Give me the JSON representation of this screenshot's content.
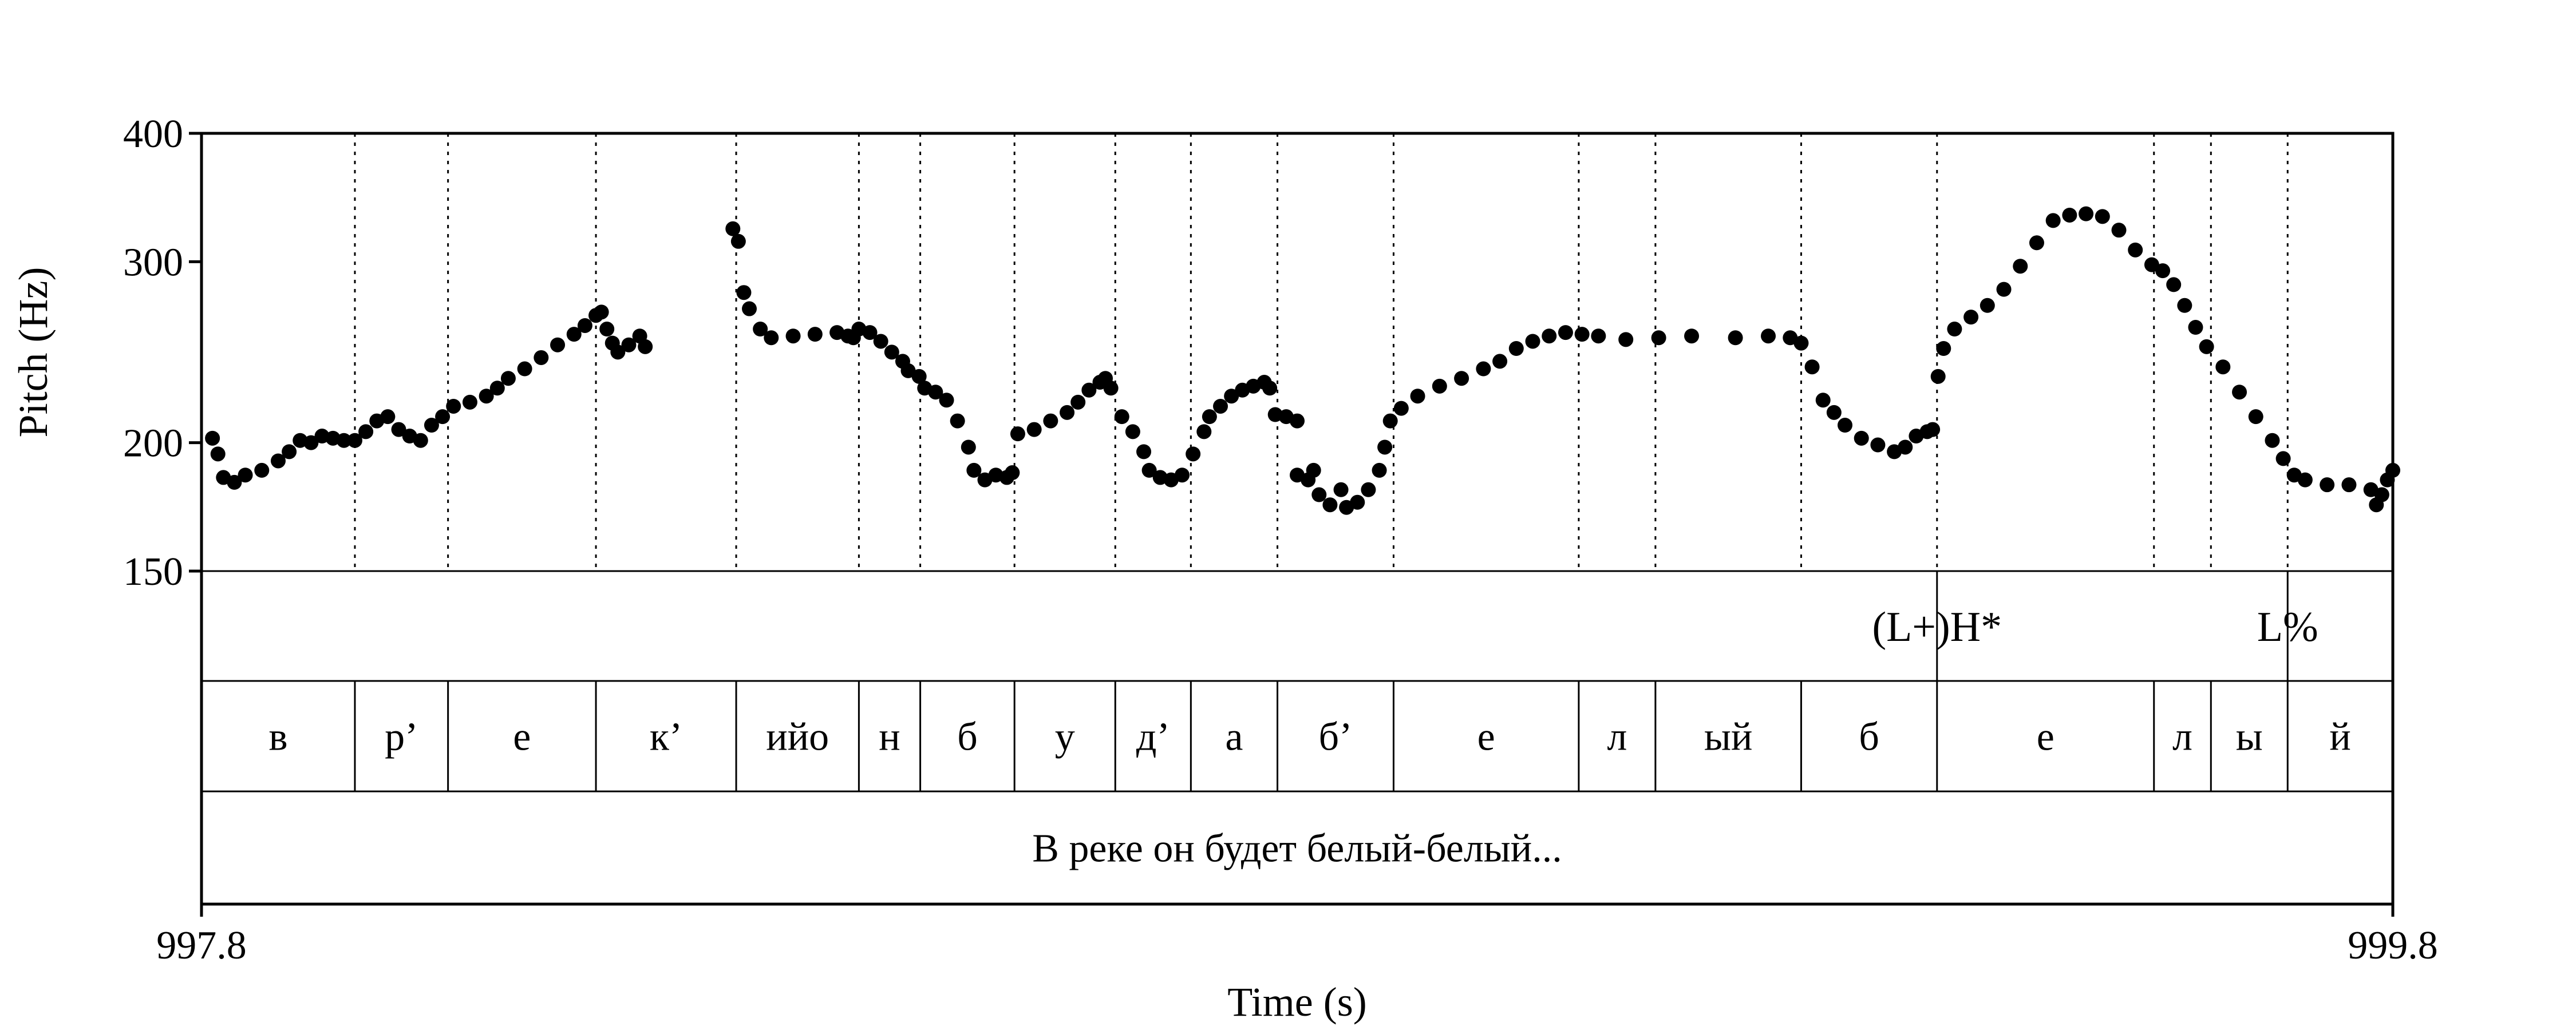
{
  "chart_data": {
    "type": "scatter",
    "y_scale": "log",
    "ylabel": "Pitch (Hz)",
    "xlabel": "Time (s)",
    "ylim": [
      150,
      400
    ],
    "xlim": [
      997.8,
      999.8
    ],
    "y_ticks": [
      "400",
      "300",
      "200",
      "150"
    ],
    "x_ticks": [
      "997.8",
      "999.8"
    ],
    "grid": "dotted vertical lines at segment boundaries",
    "tones": [
      {
        "label": "(L+)H*",
        "time": 999.384
      },
      {
        "label": "L%",
        "time": 999.704
      }
    ],
    "segments": [
      {
        "label": "в",
        "start": 997.8,
        "end": 997.94
      },
      {
        "label": "р’",
        "start": 997.94,
        "end": 998.025
      },
      {
        "label": "е",
        "start": 998.025,
        "end": 998.16
      },
      {
        "label": "к’",
        "start": 998.16,
        "end": 998.288
      },
      {
        "label": "ийо",
        "start": 998.288,
        "end": 998.4
      },
      {
        "label": "н",
        "start": 998.4,
        "end": 998.456
      },
      {
        "label": "б",
        "start": 998.456,
        "end": 998.542
      },
      {
        "label": "у",
        "start": 998.542,
        "end": 998.634
      },
      {
        "label": "д’",
        "start": 998.634,
        "end": 998.703
      },
      {
        "label": "а",
        "start": 998.703,
        "end": 998.782
      },
      {
        "label": "б’",
        "start": 998.782,
        "end": 998.888
      },
      {
        "label": "е",
        "start": 998.888,
        "end": 999.057
      },
      {
        "label": "л",
        "start": 999.057,
        "end": 999.127
      },
      {
        "label": "ый",
        "start": 999.127,
        "end": 999.26
      },
      {
        "label": "б",
        "start": 999.26,
        "end": 999.384
      },
      {
        "label": "е",
        "start": 999.384,
        "end": 999.582
      },
      {
        "label": "л",
        "start": 999.582,
        "end": 999.634
      },
      {
        "label": "ы",
        "start": 999.634,
        "end": 999.704
      },
      {
        "label": "й",
        "start": 999.704,
        "end": 999.8
      }
    ],
    "sentence": "В реке он будет белый-белый...",
    "pitch_points": [
      [
        997.81,
        202
      ],
      [
        997.815,
        195
      ],
      [
        997.82,
        185
      ],
      [
        997.83,
        183
      ],
      [
        997.84,
        186
      ],
      [
        997.855,
        188
      ],
      [
        997.87,
        192
      ],
      [
        997.88,
        196
      ],
      [
        997.89,
        201
      ],
      [
        997.9,
        200
      ],
      [
        997.91,
        203
      ],
      [
        997.92,
        202
      ],
      [
        997.93,
        201
      ],
      [
        997.94,
        201
      ],
      [
        997.95,
        205
      ],
      [
        997.96,
        210
      ],
      [
        997.97,
        212
      ],
      [
        997.98,
        206
      ],
      [
        997.99,
        203
      ],
      [
        998.0,
        201
      ],
      [
        998.01,
        208
      ],
      [
        998.02,
        212
      ],
      [
        998.03,
        217
      ],
      [
        998.045,
        219
      ],
      [
        998.06,
        222
      ],
      [
        998.07,
        226
      ],
      [
        998.08,
        231
      ],
      [
        998.095,
        236
      ],
      [
        998.11,
        242
      ],
      [
        998.125,
        249
      ],
      [
        998.14,
        255
      ],
      [
        998.15,
        260
      ],
      [
        998.16,
        266
      ],
      [
        998.165,
        268
      ],
      [
        998.17,
        258
      ],
      [
        998.175,
        250
      ],
      [
        998.18,
        245
      ],
      [
        998.19,
        249
      ],
      [
        998.2,
        254
      ],
      [
        998.205,
        248
      ],
      [
        998.285,
        323
      ],
      [
        998.29,
        314
      ],
      [
        998.295,
        280
      ],
      [
        998.3,
        270
      ],
      [
        998.31,
        258
      ],
      [
        998.32,
        253
      ],
      [
        998.34,
        254
      ],
      [
        998.36,
        255
      ],
      [
        998.38,
        256
      ],
      [
        998.39,
        254
      ],
      [
        998.395,
        253
      ],
      [
        998.4,
        258
      ],
      [
        998.41,
        256
      ],
      [
        998.42,
        251
      ],
      [
        998.43,
        245
      ],
      [
        998.44,
        240
      ],
      [
        998.445,
        235
      ],
      [
        998.455,
        232
      ],
      [
        998.46,
        226
      ],
      [
        998.47,
        224
      ],
      [
        998.48,
        220
      ],
      [
        998.49,
        210
      ],
      [
        998.5,
        198
      ],
      [
        998.505,
        188
      ],
      [
        998.515,
        184
      ],
      [
        998.525,
        186
      ],
      [
        998.535,
        185
      ],
      [
        998.54,
        187
      ],
      [
        998.545,
        204
      ],
      [
        998.56,
        206
      ],
      [
        998.575,
        210
      ],
      [
        998.59,
        214
      ],
      [
        998.6,
        219
      ],
      [
        998.61,
        225
      ],
      [
        998.62,
        229
      ],
      [
        998.625,
        231
      ],
      [
        998.63,
        226
      ],
      [
        998.64,
        212
      ],
      [
        998.65,
        205
      ],
      [
        998.66,
        196
      ],
      [
        998.665,
        188
      ],
      [
        998.675,
        185
      ],
      [
        998.685,
        184
      ],
      [
        998.695,
        186
      ],
      [
        998.705,
        195
      ],
      [
        998.715,
        205
      ],
      [
        998.72,
        212
      ],
      [
        998.73,
        217
      ],
      [
        998.74,
        222
      ],
      [
        998.75,
        225
      ],
      [
        998.76,
        227
      ],
      [
        998.77,
        229
      ],
      [
        998.775,
        226
      ],
      [
        998.78,
        213
      ],
      [
        998.79,
        212
      ],
      [
        998.8,
        210
      ],
      [
        998.8,
        186
      ],
      [
        998.81,
        184
      ],
      [
        998.815,
        188
      ],
      [
        998.82,
        178
      ],
      [
        998.83,
        174
      ],
      [
        998.84,
        180
      ],
      [
        998.845,
        173
      ],
      [
        998.855,
        175
      ],
      [
        998.865,
        180
      ],
      [
        998.875,
        188
      ],
      [
        998.88,
        198
      ],
      [
        998.885,
        210
      ],
      [
        998.895,
        216
      ],
      [
        998.91,
        222
      ],
      [
        998.93,
        227
      ],
      [
        998.95,
        231
      ],
      [
        998.97,
        236
      ],
      [
        998.985,
        240
      ],
      [
        999.0,
        247
      ],
      [
        999.015,
        251
      ],
      [
        999.03,
        254
      ],
      [
        999.045,
        256
      ],
      [
        999.06,
        255
      ],
      [
        999.075,
        254
      ],
      [
        999.1,
        252
      ],
      [
        999.13,
        253
      ],
      [
        999.16,
        254
      ],
      [
        999.2,
        253
      ],
      [
        999.23,
        254
      ],
      [
        999.25,
        253
      ],
      [
        999.26,
        250
      ],
      [
        999.27,
        237
      ],
      [
        999.28,
        220
      ],
      [
        999.29,
        214
      ],
      [
        999.3,
        208
      ],
      [
        999.315,
        202
      ],
      [
        999.33,
        199
      ],
      [
        999.345,
        196
      ],
      [
        999.355,
        198
      ],
      [
        999.365,
        203
      ],
      [
        999.375,
        205
      ],
      [
        999.38,
        206
      ],
      [
        999.385,
        232
      ],
      [
        999.39,
        247
      ],
      [
        999.4,
        258
      ],
      [
        999.415,
        265
      ],
      [
        999.43,
        272
      ],
      [
        999.445,
        282
      ],
      [
        999.46,
        297
      ],
      [
        999.475,
        313
      ],
      [
        999.49,
        329
      ],
      [
        999.505,
        333
      ],
      [
        999.52,
        334
      ],
      [
        999.535,
        332
      ],
      [
        999.55,
        322
      ],
      [
        999.565,
        308
      ],
      [
        999.58,
        298
      ],
      [
        999.59,
        294
      ],
      [
        999.6,
        285
      ],
      [
        999.61,
        272
      ],
      [
        999.62,
        259
      ],
      [
        999.63,
        248
      ],
      [
        999.645,
        237
      ],
      [
        999.66,
        224
      ],
      [
        999.675,
        212
      ],
      [
        999.69,
        201
      ],
      [
        999.7,
        193
      ],
      [
        999.71,
        186
      ],
      [
        999.72,
        184
      ],
      [
        999.74,
        182
      ],
      [
        999.76,
        182
      ],
      [
        999.78,
        180
      ],
      [
        999.785,
        174
      ],
      [
        999.79,
        178
      ],
      [
        999.795,
        184
      ],
      [
        999.8,
        188
      ]
    ]
  }
}
